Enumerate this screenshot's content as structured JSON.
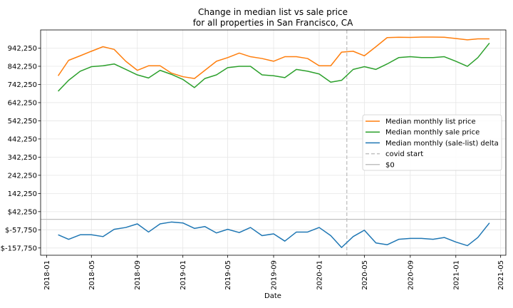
{
  "chart_data": {
    "type": "line",
    "title": [
      "Change in median list vs sale price",
      "for all properties in San Francisco, CA"
    ],
    "xlabel": "Date",
    "ylabel": "",
    "grid": true,
    "legend_position": "center-right",
    "ylim": [
      -197750,
      1042250
    ],
    "xlim": [
      "2017-12-16",
      "2021-05-15"
    ],
    "yticks": [
      -157750,
      -57750,
      42250,
      142250,
      242250,
      342250,
      442250,
      542250,
      642250,
      742250,
      842250,
      942250
    ],
    "ytick_labels": [
      "$-157,750",
      "$-57,750",
      "$42,250",
      "142,250",
      "242,250",
      "342,250",
      "442,250",
      "542,250",
      "642,250",
      "742,250",
      "842,250",
      "942,250"
    ],
    "xticks": [
      "2018-01-01",
      "2018-05-01",
      "2018-09-01",
      "2019-01-01",
      "2019-05-01",
      "2019-09-01",
      "2020-01-01",
      "2020-05-01",
      "2020-09-01",
      "2021-01-01",
      "2021-05-01"
    ],
    "xtick_labels": [
      "2018-01",
      "2018-05",
      "2018-09",
      "2019-01",
      "2019-05",
      "2019-09",
      "2020-01",
      "2020-05",
      "2020-09",
      "2021-01",
      "2021-05"
    ],
    "x": [
      "2018-02-01",
      "2018-03-01",
      "2018-04-01",
      "2018-05-01",
      "2018-06-01",
      "2018-07-01",
      "2018-08-01",
      "2018-09-01",
      "2018-10-01",
      "2018-11-01",
      "2018-12-01",
      "2019-01-01",
      "2019-02-01",
      "2019-03-01",
      "2019-04-01",
      "2019-05-01",
      "2019-06-01",
      "2019-07-01",
      "2019-08-01",
      "2019-09-01",
      "2019-10-01",
      "2019-11-01",
      "2019-12-01",
      "2020-01-01",
      "2020-02-01",
      "2020-03-01",
      "2020-04-01",
      "2020-05-01",
      "2020-06-01",
      "2020-07-01",
      "2020-08-01",
      "2020-09-01",
      "2020-10-01",
      "2020-11-01",
      "2020-12-01",
      "2021-01-01",
      "2021-02-01",
      "2021-03-01",
      "2021-04-01"
    ],
    "series": [
      {
        "name": "Median monthly list price",
        "color": "#ff7f0e",
        "values": [
          790000,
          875000,
          900000,
          925000,
          950000,
          935000,
          870000,
          820000,
          845000,
          845000,
          805000,
          785000,
          775000,
          820000,
          870000,
          890000,
          915000,
          895000,
          885000,
          870000,
          895000,
          895000,
          885000,
          845000,
          845000,
          920000,
          925000,
          900000,
          950000,
          1000000,
          1002000,
          1001000,
          1003000,
          1003000,
          1002000,
          995000,
          988000,
          993000,
          993000
        ]
      },
      {
        "name": "Median monthly sale price",
        "color": "#2ca02c",
        "values": [
          705000,
          765000,
          815000,
          840000,
          845000,
          855000,
          825000,
          795000,
          778000,
          820000,
          798000,
          770000,
          725000,
          775000,
          795000,
          835000,
          842000,
          842000,
          795000,
          790000,
          780000,
          825000,
          815000,
          800000,
          755000,
          765000,
          825000,
          840000,
          825000,
          855000,
          890000,
          895000,
          890000,
          890000,
          895000,
          870000,
          842000,
          890000,
          970000
        ]
      },
      {
        "name": "Median monthly (sale-list) delta",
        "color": "#1f77b4",
        "values": [
          -85000,
          -110000,
          -85000,
          -85000,
          -95000,
          -55000,
          -45000,
          -25000,
          -70000,
          -25000,
          -15000,
          -20000,
          -50000,
          -40000,
          -75000,
          -55000,
          -73000,
          -45000,
          -90000,
          -80000,
          -120000,
          -70000,
          -70000,
          -45000,
          -90000,
          -155000,
          -95000,
          -60000,
          -130000,
          -140000,
          -110000,
          -105000,
          -105000,
          -110000,
          -100000,
          -125000,
          -145000,
          -100000,
          -20000
        ]
      }
    ],
    "reference_lines": [
      {
        "name": "covid start",
        "type": "vertical",
        "x": "2020-03-15",
        "color": "#c0c0c0",
        "dash": true
      },
      {
        "name": "$0",
        "type": "horizontal",
        "y": 0,
        "color": "#c0c0c0",
        "dash": false
      }
    ]
  }
}
